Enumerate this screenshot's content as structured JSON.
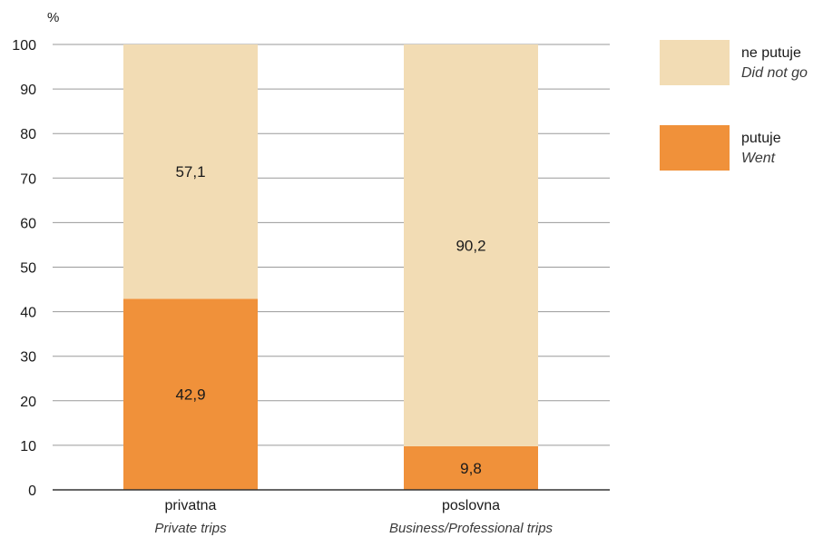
{
  "colors": {
    "went": "#f0913a",
    "did_not_go": "#f2dcb4",
    "grid": "#9a9a9a",
    "axis": "#333333"
  },
  "chart_data": {
    "type": "bar",
    "stacked": true,
    "unit_label": "%",
    "ylim": [
      0,
      100
    ],
    "yticks": [
      0,
      10,
      20,
      30,
      40,
      50,
      60,
      70,
      80,
      90,
      100
    ],
    "grid": true,
    "legend_position": "right",
    "categories": [
      {
        "label": "privatna",
        "sublabel": "Private trips"
      },
      {
        "label": "poslovna",
        "sublabel": "Business/Professional trips"
      }
    ],
    "series": [
      {
        "name": "putuje",
        "name_en": "Went",
        "values": [
          42.9,
          9.8
        ],
        "value_labels": [
          "42,9",
          "9,8"
        ]
      },
      {
        "name": "ne putuje",
        "name_en": "Did not go",
        "values": [
          57.1,
          90.2
        ],
        "value_labels": [
          "57,1",
          "90,2"
        ]
      }
    ]
  },
  "legend": [
    {
      "label": "ne putuje",
      "sublabel": "Did not go",
      "color": "#f2dcb4"
    },
    {
      "label": "putuje",
      "sublabel": "Went",
      "color": "#f0913a"
    }
  ]
}
